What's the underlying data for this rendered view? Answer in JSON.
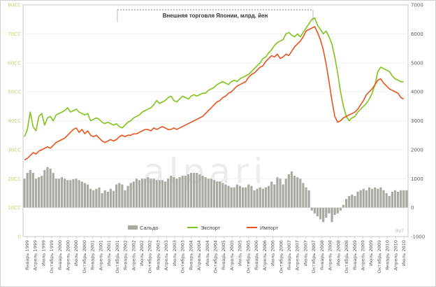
{
  "chart_data": {
    "type": "bar+line",
    "title": "Внешняя торговля Японии, млрд. йен",
    "left_axis": {
      "ticks": [
        "80CC",
        "70CC",
        "60CC",
        "50CC",
        "40CC",
        "30CC",
        "20CC",
        "10CC",
        "0"
      ],
      "range": [
        0,
        8000
      ]
    },
    "right_axis": {
      "ticks": [
        "7000",
        "6000",
        "5000",
        "4000",
        "3000",
        "2000",
        "1000",
        "0",
        "-1000"
      ],
      "range": [
        -1000,
        7000
      ]
    },
    "x_labels": [
      "Январь 1999",
      "Апрель 1999",
      "Июль 1999",
      "Октябрь 1999",
      "Январь 2000",
      "Апрель 2000",
      "Июль 2000",
      "Октябрь 2000",
      "Январь 2001",
      "Апрель 2001",
      "Июль 2001",
      "Октябрь 2001",
      "Январь 2002",
      "Апрель 2002",
      "Июль 2002",
      "Октябрь 2002",
      "Январь 2003",
      "Апрель 2003",
      "Июль 2003",
      "Октябрь 2003",
      "Январь 2004",
      "Апрель 2004",
      "Июль 2004",
      "Октябрь 2004",
      "Январь 2005",
      "Апрель 2005",
      "Июль 2005",
      "Октябрь 2005",
      "Январь 2006",
      "Апрель 2006",
      "Июль 2006",
      "Октябрь 2006",
      "Январь 2007",
      "Апрель 2007",
      "Июль 2007",
      "Октябрь 2007",
      "Январь 2008",
      "Апрель 2008",
      "Июль 2008",
      "Октябрь 2008",
      "Январь 2009",
      "Апрель 2009",
      "Июль 2009",
      "Октябрь 2009",
      "Январь 2010",
      "Апрель 2010",
      "Июль 2010"
    ],
    "legend": [
      "Сальдо",
      "Экспорт",
      "Импорт"
    ],
    "colors": {
      "balance": "#a9a9a2",
      "export": "#7fc31c",
      "import": "#e8531c"
    },
    "watermark": "alpari",
    "brand": "RUT",
    "series": [
      {
        "name": "Экспорт",
        "axis": "left",
        "values": [
          3450,
          3700,
          4300,
          3800,
          3650,
          4150,
          4250,
          3850,
          4100,
          4150,
          4000,
          4200,
          4250,
          4300,
          4350,
          4450,
          4300,
          4350,
          4400,
          4300,
          4250,
          4200,
          4250,
          4000,
          4050,
          4100,
          4050,
          3950,
          3900,
          3950,
          3900,
          3850,
          3900,
          3800,
          3750,
          3850,
          3950,
          4000,
          4100,
          4150,
          4200,
          4300,
          4350,
          4400,
          4450,
          4550,
          4700,
          4600,
          4650,
          4700,
          4800,
          4850,
          4700,
          4650,
          4750,
          4850,
          4800,
          4750,
          4850,
          4900,
          4850,
          4900,
          4950,
          4950,
          5050,
          5100,
          5150,
          5250,
          5300,
          5350,
          5300,
          5250,
          5350,
          5400,
          5350,
          5450,
          5500,
          5550,
          5600,
          5700,
          5800,
          5900,
          6000,
          6150,
          6200,
          6350,
          6450,
          6600,
          6700,
          6750,
          6800,
          7000,
          7050,
          6950,
          6900,
          7000,
          6900,
          7050,
          7200,
          7350,
          7500,
          7550,
          7300,
          7150,
          7000,
          7100,
          6900,
          6650,
          6200,
          5650,
          5000,
          4500,
          4150,
          4000,
          4100,
          4150,
          4300,
          4400,
          4500,
          4600,
          4750,
          4950,
          5250,
          5700,
          5850,
          5800,
          5750,
          5700,
          5550,
          5450,
          5400,
          5350,
          5350
        ]
      },
      {
        "name": "Импорт",
        "axis": "left",
        "values": [
          2650,
          2700,
          2800,
          2900,
          2850,
          2950,
          3000,
          3050,
          3100,
          3050,
          3150,
          3250,
          3300,
          3350,
          3400,
          3500,
          3600,
          3700,
          3750,
          3600,
          3700,
          3550,
          3650,
          3500,
          3450,
          3500,
          3400,
          3300,
          3250,
          3300,
          3350,
          3300,
          3350,
          3450,
          3500,
          3450,
          3500,
          3500,
          3550,
          3550,
          3600,
          3650,
          3700,
          3700,
          3650,
          3750,
          3700,
          3750,
          3800,
          3750,
          3700,
          3700,
          3750,
          3700,
          3750,
          3800,
          3850,
          3900,
          3950,
          4000,
          4050,
          4100,
          4150,
          4250,
          4350,
          4450,
          4550,
          4650,
          4700,
          4800,
          4850,
          4950,
          5000,
          5100,
          5200,
          5250,
          5300,
          5350,
          5500,
          5600,
          5650,
          5750,
          5850,
          5900,
          6050,
          6150,
          6250,
          6200,
          6300,
          6150,
          6200,
          6300,
          6250,
          6400,
          6550,
          6650,
          6750,
          6900,
          7100,
          7150,
          7200,
          7250,
          7050,
          6800,
          6450,
          5950,
          5350,
          4700,
          4150,
          3950,
          4000,
          4100,
          4150,
          4200,
          4250,
          4300,
          4400,
          4550,
          4700,
          4900,
          5000,
          5100,
          5250,
          5400,
          5450,
          5300,
          5200,
          5100,
          5050,
          5000,
          4950,
          4800,
          4750
        ]
      },
      {
        "name": "Сальдо",
        "axis": "right",
        "values": [
          1000,
          1200,
          1300,
          1200,
          1000,
          1050,
          1100,
          1300,
          1400,
          1350,
          1200,
          1000,
          1000,
          1050,
          1000,
          950,
          950,
          980,
          1000,
          950,
          900,
          850,
          800,
          650,
          600,
          650,
          700,
          500,
          600,
          550,
          650,
          580,
          800,
          850,
          800,
          600,
          750,
          850,
          900,
          1000,
          950,
          1000,
          1000,
          1050,
          1000,
          1000,
          950,
          950,
          950,
          900,
          1000,
          1100,
          1050,
          1000,
          1050,
          1100,
          1100,
          1150,
          1200,
          1200,
          1200,
          1150,
          1100,
          1050,
          1000,
          1000,
          950,
          900,
          900,
          850,
          800,
          750,
          700,
          700,
          800,
          750,
          700,
          700,
          800,
          750,
          600,
          650,
          700,
          650,
          700,
          750,
          900,
          800,
          1050,
          1000,
          800,
          1000,
          1150,
          1250,
          1100,
          1050,
          1000,
          850,
          700,
          600,
          -100,
          -200,
          -300,
          -400,
          -500,
          -350,
          -200,
          -500,
          -250,
          -200,
          -100,
          100,
          300,
          400,
          450,
          400,
          550,
          600,
          650,
          600,
          700,
          650,
          700,
          650,
          700,
          600,
          500,
          400,
          550,
          600,
          550,
          600,
          600,
          600
        ]
      }
    ]
  }
}
